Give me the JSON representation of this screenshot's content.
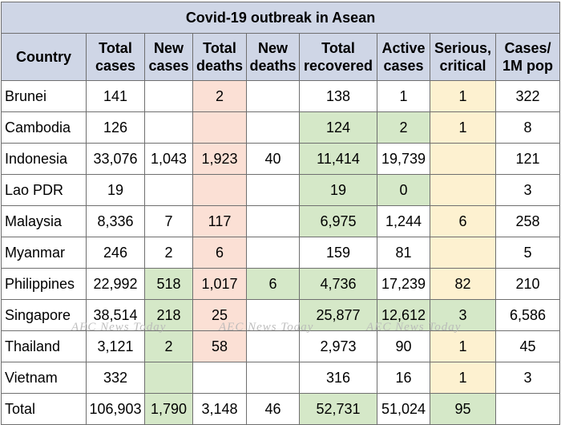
{
  "title": "Covid-19 outbreak in Asean",
  "headers": [
    {
      "line1": "Country",
      "line2": ""
    },
    {
      "line1": "Total",
      "line2": "cases"
    },
    {
      "line1": "New",
      "line2": "cases"
    },
    {
      "line1": "Total",
      "line2": "deaths"
    },
    {
      "line1": "New",
      "line2": "deaths"
    },
    {
      "line1": "Total",
      "line2": "recovered"
    },
    {
      "line1": "Active",
      "line2": "cases"
    },
    {
      "line1": "Serious,",
      "line2": "critical"
    },
    {
      "line1": "Cases/",
      "line2": "1M pop"
    }
  ],
  "rows": [
    [
      "Brunei",
      "141",
      "",
      "2",
      "",
      "138",
      "1",
      "1",
      "322"
    ],
    [
      "Cambodia",
      "126",
      "",
      "",
      "",
      "124",
      "2",
      "1",
      "8"
    ],
    [
      "Indonesia",
      "33,076",
      "1,043",
      "1,923",
      "40",
      "11,414",
      "19,739",
      "",
      "121"
    ],
    [
      "Lao PDR",
      "19",
      "",
      "",
      "",
      "19",
      "0",
      "",
      "3"
    ],
    [
      "Malaysia",
      "8,336",
      "7",
      "117",
      "",
      "6,975",
      "1,244",
      "6",
      "258"
    ],
    [
      "Myanmar",
      "246",
      "2",
      "6",
      "",
      "159",
      "81",
      "",
      "5"
    ],
    [
      "Philippines",
      "22,992",
      "518",
      "1,017",
      "6",
      "4,736",
      "17,239",
      "82",
      "210"
    ],
    [
      "Singapore",
      "38,514",
      "218",
      "25",
      "",
      "25,877",
      "12,612",
      "3",
      "6,586"
    ],
    [
      "Thailand",
      "3,121",
      "2",
      "58",
      "",
      "2,973",
      "90",
      "1",
      "45"
    ],
    [
      "Vietnam",
      "332",
      "",
      "",
      "",
      "316",
      "16",
      "1",
      "3"
    ],
    [
      "Total",
      "106,903",
      "1,790",
      "3,148",
      "46",
      "52,731",
      "51,024",
      "95",
      ""
    ]
  ],
  "highlight_colors": {
    "green": "#d5e8c8",
    "salmon": "#fbe0d5",
    "yellow": "#fdf1d0"
  },
  "watermark": "AEC News Today"
}
